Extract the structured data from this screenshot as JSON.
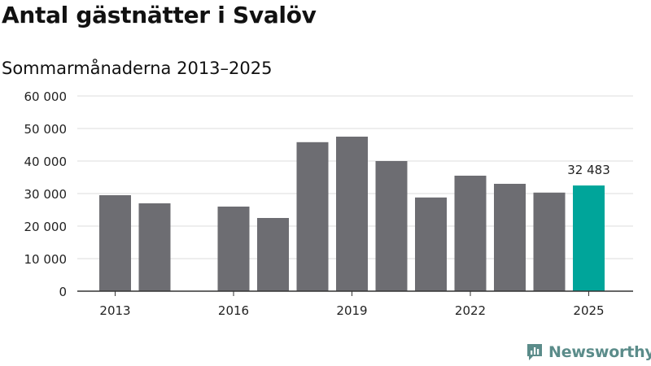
{
  "title": "Antal gästnätter i Svalöv",
  "subtitle": "Sommarmånaderna 2013–2025",
  "brand": {
    "name": "Newsworthy",
    "logo_icon": "newsworthy-logo-icon"
  },
  "colors": {
    "bar": "#6d6d72",
    "highlight": "#00a59a",
    "grid": "#dcdcdc",
    "axis": "#333333",
    "brand": "#5b8c8a"
  },
  "chart_data": {
    "type": "bar",
    "categories": [
      "2013",
      "2014",
      "2015",
      "2016",
      "2017",
      "2018",
      "2019",
      "2020",
      "2021",
      "2022",
      "2023",
      "2024",
      "2025"
    ],
    "values": [
      29500,
      27000,
      null,
      26000,
      22500,
      45800,
      47500,
      40000,
      28800,
      35500,
      33000,
      30300,
      32483
    ],
    "highlight_index": 12,
    "data_labels": [
      {
        "index": 12,
        "text": "32 483"
      }
    ],
    "x_tick_labels": [
      "2013",
      "2016",
      "2019",
      "2022",
      "2025"
    ],
    "y_ticks": [
      0,
      10000,
      20000,
      30000,
      40000,
      50000,
      60000
    ],
    "y_tick_labels": [
      "0",
      "10 000",
      "20 000",
      "30 000",
      "40 000",
      "50 000",
      "60 000"
    ],
    "ylim": [
      0,
      60000
    ],
    "grid": true,
    "legend": "none",
    "xlabel": "",
    "ylabel": ""
  }
}
